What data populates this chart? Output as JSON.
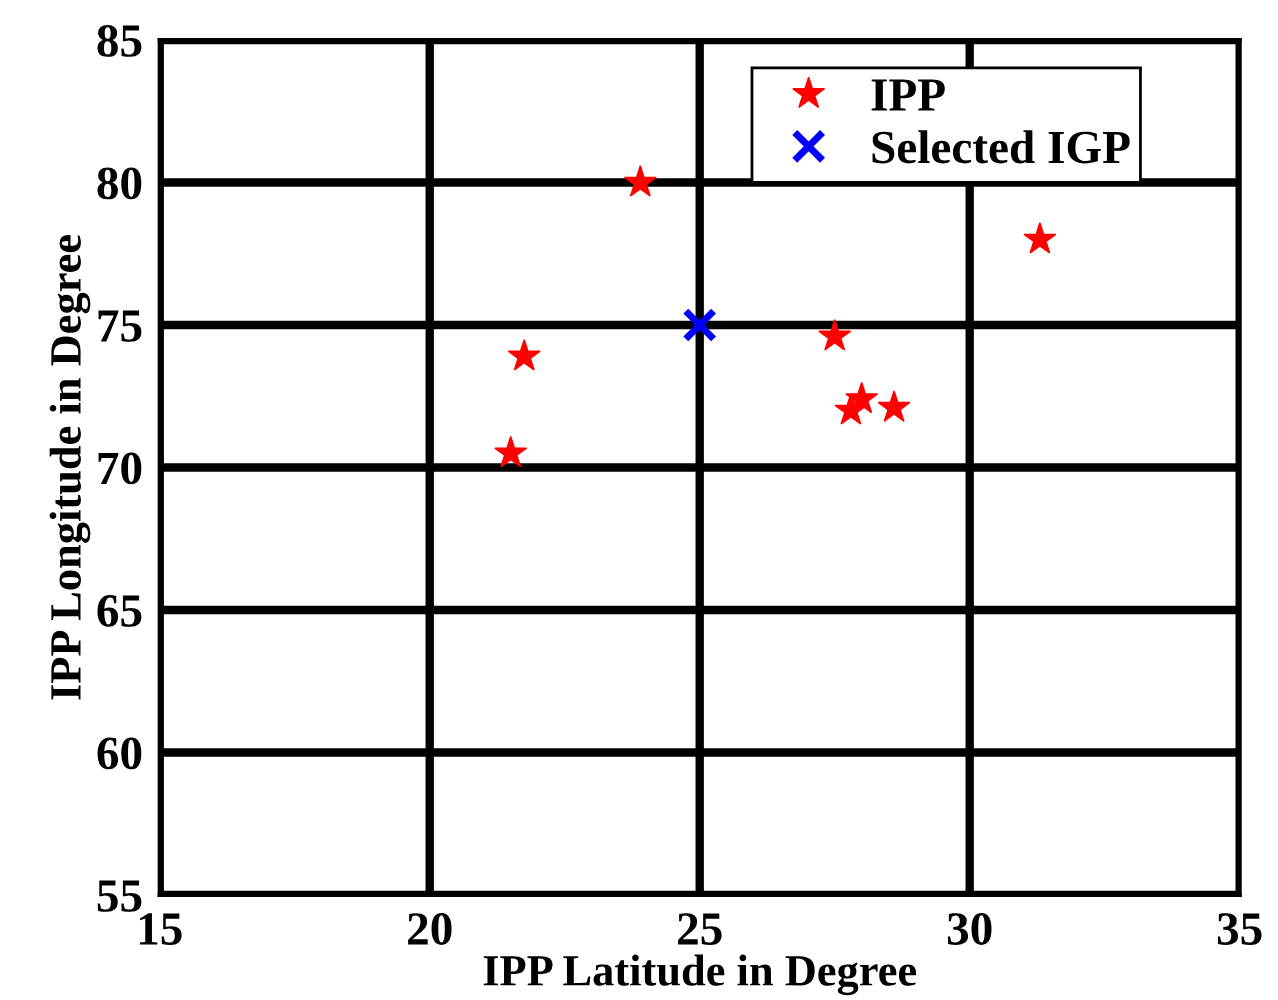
{
  "chart_data": {
    "type": "scatter",
    "xlabel": "IPP Latitude in Degree",
    "ylabel": "IPP Longitude in Degree",
    "xlim": [
      15,
      35
    ],
    "xticks": [
      15,
      20,
      25,
      30,
      35
    ],
    "ylim": [
      55,
      85
    ],
    "yticks": [
      55,
      60,
      65,
      70,
      75,
      80,
      85
    ],
    "grid": true,
    "legend": "top right",
    "series": [
      {
        "name": "IPP",
        "color": "#ff0000",
        "marker": "star",
        "x": [
          21.5,
          21.75,
          23.9,
          27.5,
          27.8,
          28.0,
          28.6,
          31.3
        ],
        "values": [
          70.5,
          73.9,
          80.0,
          74.6,
          72.0,
          72.4,
          72.1,
          78.0
        ]
      },
      {
        "name": "Selected IGP",
        "color": "#0000ff",
        "marker": "cross",
        "x": [
          25
        ],
        "values": [
          75
        ]
      }
    ]
  }
}
